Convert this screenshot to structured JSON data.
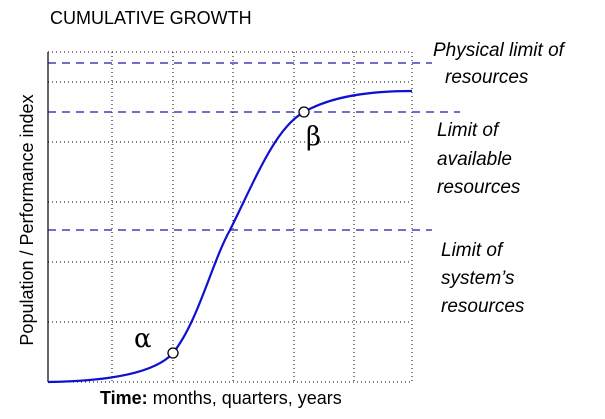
{
  "title": "CUMULATIVE GROWTH",
  "y_axis_label": "Population / Performance index",
  "x_axis_label": {
    "bold": "Time:",
    "text": "months, quarters, years"
  },
  "limits": [
    {
      "lines": [
        "Physical limit of",
        "resources"
      ]
    },
    {
      "lines": [
        "Limit of",
        "available",
        "resources"
      ]
    },
    {
      "lines": [
        "Limit of",
        "system’s",
        "resources"
      ]
    }
  ],
  "points": [
    {
      "label": "α"
    },
    {
      "label": "β"
    }
  ]
}
